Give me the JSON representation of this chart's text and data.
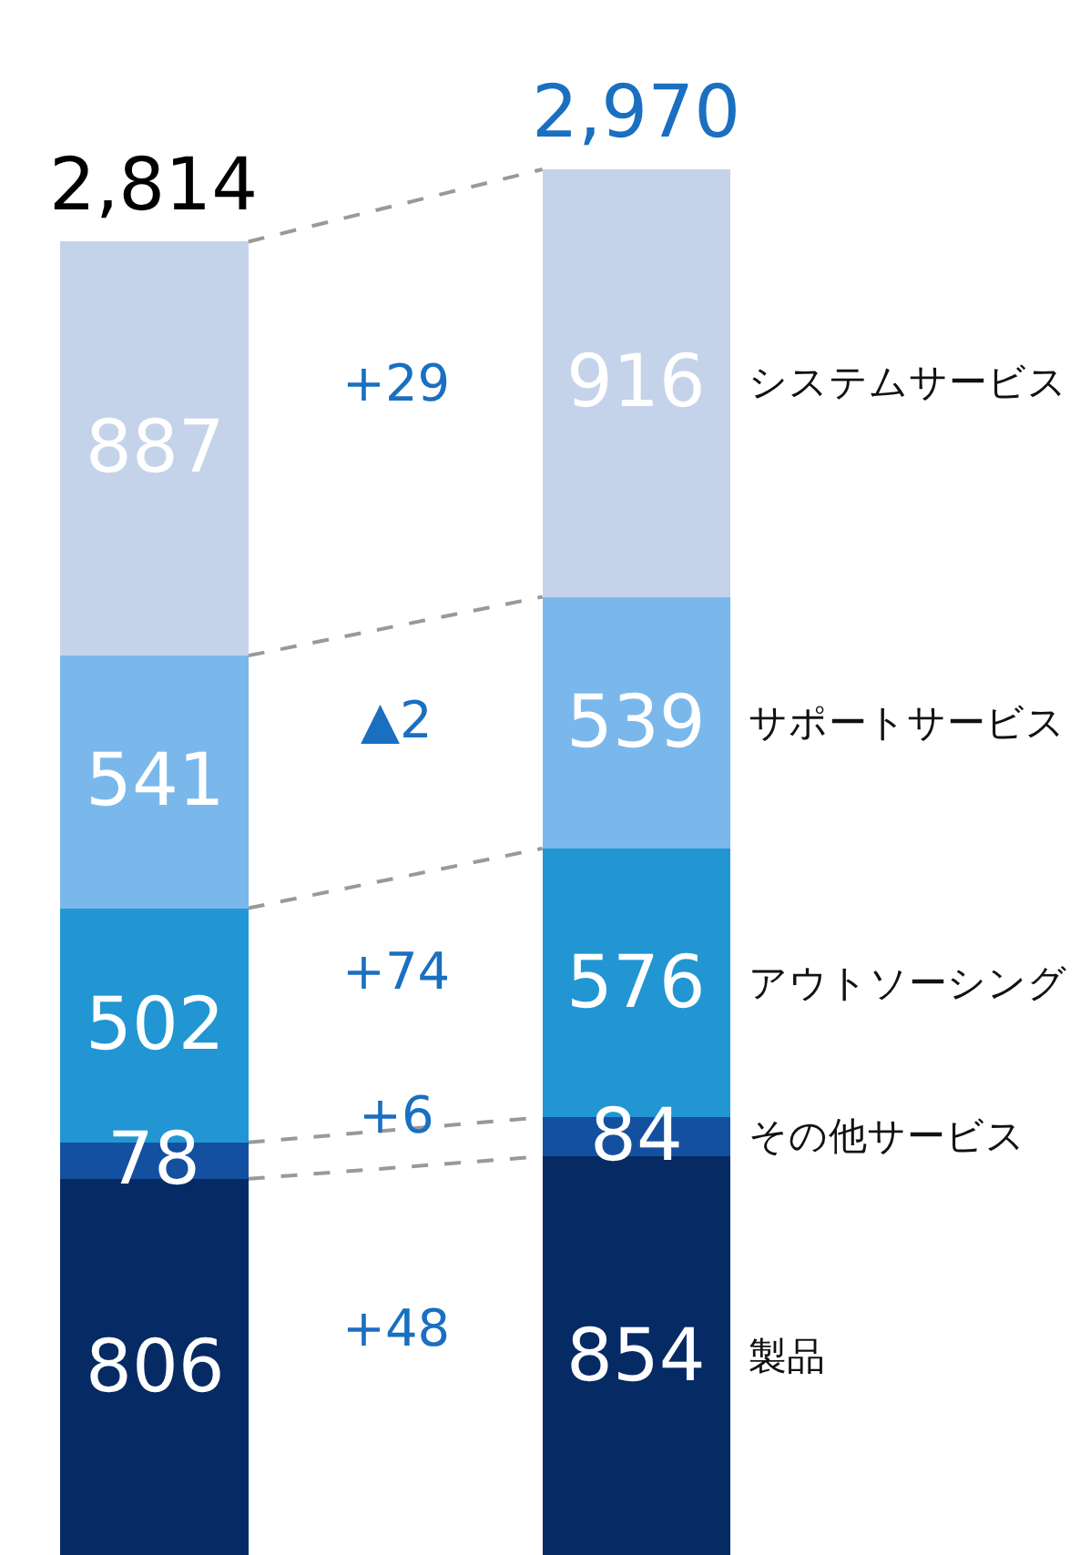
{
  "chart_data": {
    "type": "bar",
    "stacked": true,
    "categories": [
      null,
      null
    ],
    "series": [
      {
        "name": "製品",
        "color": "#062a64",
        "values": [
          806,
          854
        ]
      },
      {
        "name": "その他サービス",
        "color": "#1450a0",
        "values": [
          78,
          84
        ]
      },
      {
        "name": "アウトソーシング",
        "color": "#2196d3",
        "values": [
          502,
          576
        ]
      },
      {
        "name": "サポートサービス",
        "color": "#7ab8ec",
        "values": [
          541,
          539
        ]
      },
      {
        "name": "システムサービス",
        "color": "#c5d3ea",
        "values": [
          887,
          916
        ]
      }
    ],
    "totals": [
      "2,814",
      "2,970"
    ],
    "annotations": [
      "+48",
      "+6",
      "+74",
      "▲2",
      "+29"
    ],
    "data_labels": true,
    "tick_labels": false,
    "legend": false
  }
}
